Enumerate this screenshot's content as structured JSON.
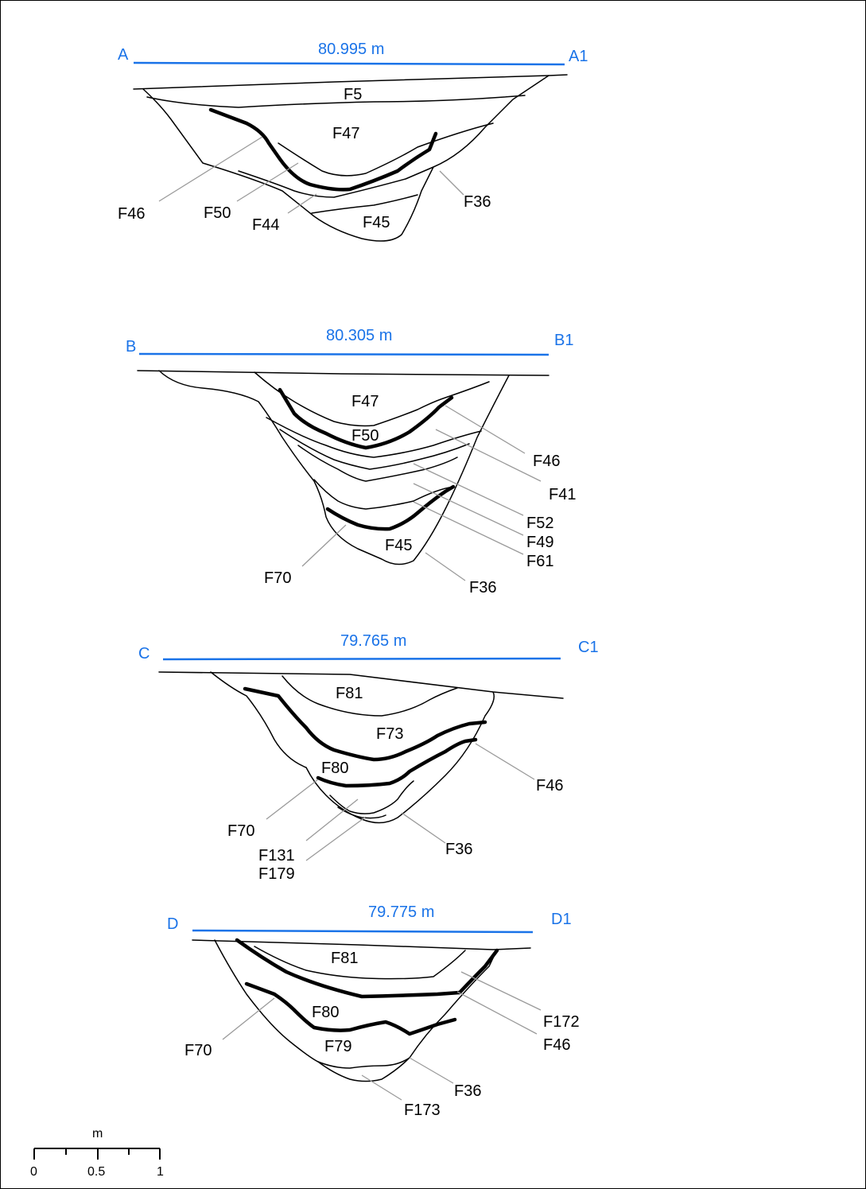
{
  "sections": [
    {
      "start": "A",
      "end": "A1",
      "datum": "80.995 m",
      "labels": {
        "f5": "F5",
        "f47": "F47",
        "f46": "F46",
        "f50": "F50",
        "f44": "F44",
        "f45": "F45",
        "f36": "F36"
      }
    },
    {
      "start": "B",
      "end": "B1",
      "datum": "80.305 m",
      "labels": {
        "f47": "F47",
        "f50": "F50",
        "f46": "F46",
        "f41": "F41",
        "f52": "F52",
        "f49": "F49",
        "f61": "F61",
        "f45": "F45",
        "f70": "F70",
        "f36": "F36"
      }
    },
    {
      "start": "C",
      "end": "C1",
      "datum": "79.765 m",
      "labels": {
        "f81": "F81",
        "f73": "F73",
        "f80": "F80",
        "f46": "F46",
        "f70": "F70",
        "f131": "F131",
        "f179": "F179",
        "f36": "F36"
      }
    },
    {
      "start": "D",
      "end": "D1",
      "datum": "79.775 m",
      "labels": {
        "f81": "F81",
        "f172": "F172",
        "f80": "F80",
        "f46": "F46",
        "f70": "F70",
        "f79": "F79",
        "f36": "F36",
        "f173": "F173"
      }
    }
  ],
  "scale_bar": {
    "unit": "m",
    "ticks": [
      "0",
      "0.5",
      "1"
    ]
  },
  "colors": {
    "datum_line": "#1a73e8",
    "section_line": "#000000",
    "leader_line": "#9a9a9a"
  }
}
